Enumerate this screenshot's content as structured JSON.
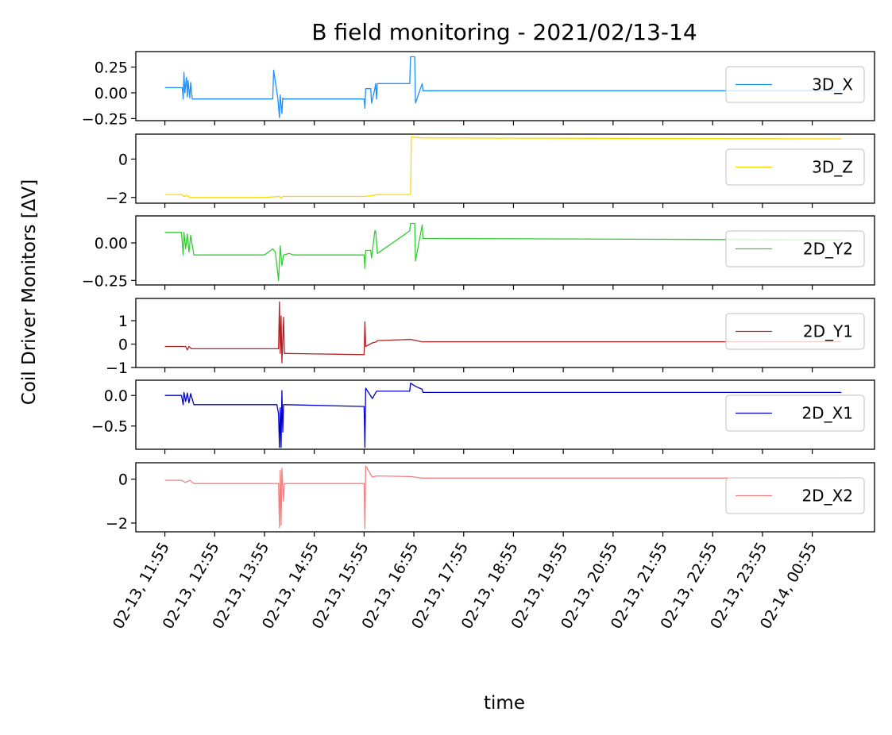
{
  "chart_data": {
    "type": "line",
    "title": "B field monitoring - 2021/02/13-14",
    "xlabel": "time",
    "ylabel": "Coil Driver Monitors [ΔV]",
    "x_ticks": [
      "02-13, 11:55",
      "02-13, 12:55",
      "02-13, 13:55",
      "02-13, 14:55",
      "02-13, 15:55",
      "02-13, 16:55",
      "02-13, 17:55",
      "02-13, 18:55",
      "02-13, 19:55",
      "02-13, 20:55",
      "02-13, 21:55",
      "02-13, 22:55",
      "02-13, 23:55",
      "02-14, 00:55"
    ],
    "x_range": [
      "02-13, 11:20",
      "02-14, 02:10"
    ],
    "legend_position": "right",
    "grid": false,
    "series": [
      {
        "name": "3D_X",
        "color": "#1e90ff",
        "ylim": [
          -0.27,
          0.4
        ],
        "yticks": [
          0.25,
          0.0,
          -0.25
        ],
        "ytick_labels": [
          "0.25",
          "0.00",
          "−0.25"
        ],
        "x": [
          "02-13, 11:55",
          "02-13, 12:16",
          "02-13, 12:17",
          "02-13, 12:18",
          "02-13, 12:19",
          "02-13, 12:21",
          "02-13, 12:22",
          "02-13, 12:23",
          "02-13, 12:25",
          "02-13, 12:26",
          "02-13, 12:28",
          "02-13, 12:31",
          "02-13, 13:55",
          "02-13, 14:05",
          "02-13, 14:06",
          "02-13, 14:11",
          "02-13, 14:13",
          "02-13, 14:14",
          "02-13, 14:16",
          "02-13, 14:17",
          "02-13, 14:18",
          "02-13, 14:19",
          "02-13, 14:25",
          "02-13, 15:55",
          "02-13, 15:56",
          "02-13, 15:57",
          "02-13, 16:03",
          "02-13, 16:04",
          "02-13, 16:08",
          "02-13, 16:09",
          "02-13, 16:10",
          "02-13, 16:11",
          "02-13, 16:50",
          "02-13, 16:51",
          "02-13, 16:56",
          "02-13, 16:57",
          "02-13, 17:05",
          "02-13, 17:06",
          "02-14, 01:30"
        ],
        "values": [
          0.05,
          0.05,
          -0.06,
          0.2,
          0.0,
          0.15,
          -0.04,
          0.12,
          -0.05,
          0.1,
          -0.06,
          -0.06,
          -0.06,
          -0.06,
          0.22,
          -0.05,
          -0.24,
          -0.02,
          -0.2,
          -0.05,
          -0.06,
          -0.06,
          -0.06,
          -0.06,
          -0.15,
          0.04,
          0.04,
          -0.1,
          0.04,
          0.09,
          -0.06,
          0.09,
          0.09,
          0.35,
          0.35,
          -0.1,
          0.09,
          0.02,
          0.02
        ]
      },
      {
        "name": "3D_Z",
        "color": "#ffd700",
        "ylim": [
          -2.3,
          1.3
        ],
        "yticks": [
          0,
          -2
        ],
        "ytick_labels": [
          "0",
          "−2"
        ],
        "x": [
          "02-13, 11:55",
          "02-13, 12:15",
          "02-13, 12:18",
          "02-13, 12:22",
          "02-13, 12:25",
          "02-13, 13:55",
          "02-13, 14:13",
          "02-13, 14:15",
          "02-13, 14:17",
          "02-13, 15:55",
          "02-13, 16:05",
          "02-13, 16:10",
          "02-13, 16:51",
          "02-13, 16:52",
          "02-13, 17:05",
          "02-14, 01:30"
        ],
        "values": [
          -1.85,
          -1.85,
          -1.95,
          -1.9,
          -2.0,
          -2.0,
          -1.95,
          -2.05,
          -1.95,
          -1.95,
          -1.9,
          -1.85,
          -1.85,
          1.15,
          1.1,
          1.05
        ]
      },
      {
        "name": "2D_Y2",
        "color": "#32cd32",
        "ylim": [
          -0.28,
          0.18
        ],
        "yticks": [
          0.0,
          -0.25
        ],
        "ytick_labels": [
          "0.00",
          "−0.25"
        ],
        "x": [
          "02-13, 11:55",
          "02-13, 12:15",
          "02-13, 12:17",
          "02-13, 12:18",
          "02-13, 12:20",
          "02-13, 12:22",
          "02-13, 12:24",
          "02-13, 12:26",
          "02-13, 12:30",
          "02-13, 13:55",
          "02-13, 14:05",
          "02-13, 14:08",
          "02-13, 14:12",
          "02-13, 14:14",
          "02-13, 14:16",
          "02-13, 14:18",
          "02-13, 14:25",
          "02-13, 14:30",
          "02-13, 15:55",
          "02-13, 15:56",
          "02-13, 15:57",
          "02-13, 16:03",
          "02-13, 16:04",
          "02-13, 16:08",
          "02-13, 16:09",
          "02-13, 16:11",
          "02-13, 16:50",
          "02-13, 16:51",
          "02-13, 16:56",
          "02-13, 16:57",
          "02-13, 17:05",
          "02-13, 17:06",
          "02-14, 01:30"
        ],
        "values": [
          0.07,
          0.07,
          -0.08,
          0.07,
          -0.04,
          0.06,
          -0.06,
          0.05,
          -0.08,
          -0.08,
          -0.04,
          -0.06,
          -0.25,
          -0.02,
          -0.15,
          -0.08,
          -0.07,
          -0.08,
          -0.08,
          -0.17,
          -0.05,
          -0.05,
          -0.1,
          0.08,
          0.08,
          -0.07,
          0.08,
          0.13,
          0.13,
          -0.12,
          0.12,
          0.03,
          0.02
        ]
      },
      {
        "name": "2D_Y1",
        "color": "#b22222",
        "ylim": [
          -1.0,
          1.95
        ],
        "yticks": [
          1,
          0,
          -1
        ],
        "ytick_labels": [
          "1",
          "0",
          "−1"
        ],
        "x": [
          "02-13, 11:55",
          "02-13, 12:20",
          "02-13, 12:22",
          "02-13, 12:24",
          "02-13, 12:27",
          "02-13, 12:30",
          "02-13, 13:55",
          "02-13, 14:12",
          "02-13, 14:13",
          "02-13, 14:14",
          "02-13, 14:15",
          "02-13, 14:16",
          "02-13, 14:18",
          "02-13, 14:19",
          "02-13, 14:20",
          "02-13, 15:55",
          "02-13, 15:56",
          "02-13, 15:57",
          "02-13, 16:05",
          "02-13, 16:10",
          "02-13, 16:11",
          "02-13, 16:51",
          "02-13, 17:05",
          "02-14, 01:30"
        ],
        "values": [
          -0.1,
          -0.1,
          -0.25,
          -0.1,
          -0.2,
          -0.2,
          -0.2,
          -0.2,
          1.8,
          -0.4,
          1.2,
          -0.8,
          1.15,
          -0.4,
          -0.4,
          -0.45,
          0.95,
          -0.1,
          0.05,
          0.1,
          0.15,
          0.2,
          0.1,
          0.1
        ]
      },
      {
        "name": "2D_X1",
        "color": "#0000cd",
        "ylim": [
          -0.88,
          0.25
        ],
        "yticks": [
          0.0,
          -0.5
        ],
        "ytick_labels": [
          "0.0",
          "−0.5"
        ],
        "x": [
          "02-13, 11:55",
          "02-13, 12:15",
          "02-13, 12:17",
          "02-13, 12:18",
          "02-13, 12:20",
          "02-13, 12:22",
          "02-13, 12:24",
          "02-13, 12:26",
          "02-13, 12:30",
          "02-13, 13:55",
          "02-13, 14:10",
          "02-13, 14:12",
          "02-13, 14:13",
          "02-13, 14:14",
          "02-13, 14:15",
          "02-13, 14:16",
          "02-13, 14:17",
          "02-13, 14:18",
          "02-13, 14:20",
          "02-13, 15:55",
          "02-13, 15:56",
          "02-13, 15:57",
          "02-13, 16:05",
          "02-13, 16:10",
          "02-13, 16:11",
          "02-13, 16:50",
          "02-13, 16:51",
          "02-13, 16:57",
          "02-13, 17:05",
          "02-13, 17:06",
          "02-14, 01:30"
        ],
        "values": [
          0.0,
          0.0,
          -0.15,
          0.05,
          -0.1,
          0.04,
          -0.12,
          0.03,
          -0.15,
          -0.15,
          -0.15,
          -0.3,
          -0.85,
          -0.2,
          -0.85,
          0.08,
          -0.6,
          -0.15,
          -0.15,
          -0.18,
          -0.85,
          0.12,
          -0.05,
          0.07,
          0.07,
          0.07,
          0.2,
          0.15,
          0.1,
          0.05,
          0.05
        ]
      },
      {
        "name": "2D_X2",
        "color": "#f08080",
        "ylim": [
          -2.4,
          0.75
        ],
        "yticks": [
          0,
          -2
        ],
        "ytick_labels": [
          "0",
          "−2"
        ],
        "x": [
          "02-13, 11:55",
          "02-13, 12:15",
          "02-13, 12:20",
          "02-13, 12:25",
          "02-13, 12:30",
          "02-13, 13:55",
          "02-13, 14:10",
          "02-13, 14:12",
          "02-13, 14:13",
          "02-13, 14:14",
          "02-13, 14:15",
          "02-13, 14:16",
          "02-13, 14:18",
          "02-13, 14:19",
          "02-13, 14:20",
          "02-13, 15:55",
          "02-13, 15:56",
          "02-13, 15:57",
          "02-13, 16:05",
          "02-13, 16:10",
          "02-13, 16:51",
          "02-13, 17:05",
          "02-14, 01:30"
        ],
        "values": [
          -0.05,
          -0.05,
          -0.15,
          -0.05,
          -0.2,
          -0.2,
          -0.2,
          -0.2,
          -2.2,
          0.4,
          -2.1,
          0.5,
          -1.0,
          -0.2,
          -0.2,
          -0.2,
          -2.25,
          0.6,
          0.1,
          0.15,
          0.12,
          0.05,
          0.05
        ]
      }
    ]
  }
}
